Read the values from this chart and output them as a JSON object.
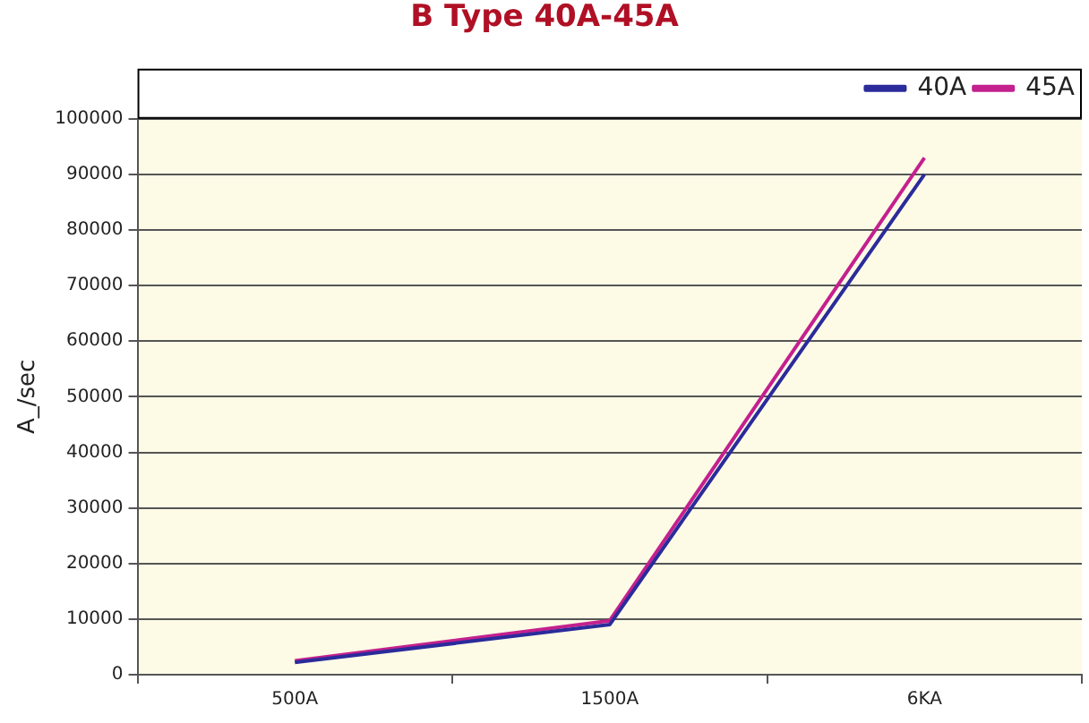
{
  "chart_data": {
    "type": "line",
    "title": "B Type 40A-45A",
    "ylabel": "A_/sec",
    "categories": [
      "500A",
      "1500A",
      "6KA"
    ],
    "series": [
      {
        "name": "40A",
        "color": "#2b2b9b",
        "values": [
          2200,
          9000,
          90000
        ]
      },
      {
        "name": "45A",
        "color": "#c4208e",
        "values": [
          2500,
          9700,
          93000
        ]
      }
    ],
    "ylim": [
      0,
      100000
    ],
    "yticks": [
      0,
      10000,
      20000,
      30000,
      40000,
      50000,
      60000,
      70000,
      80000,
      90000,
      100000
    ],
    "grid": "y",
    "legend": "top right",
    "marker": "none",
    "line_style": "solid"
  }
}
